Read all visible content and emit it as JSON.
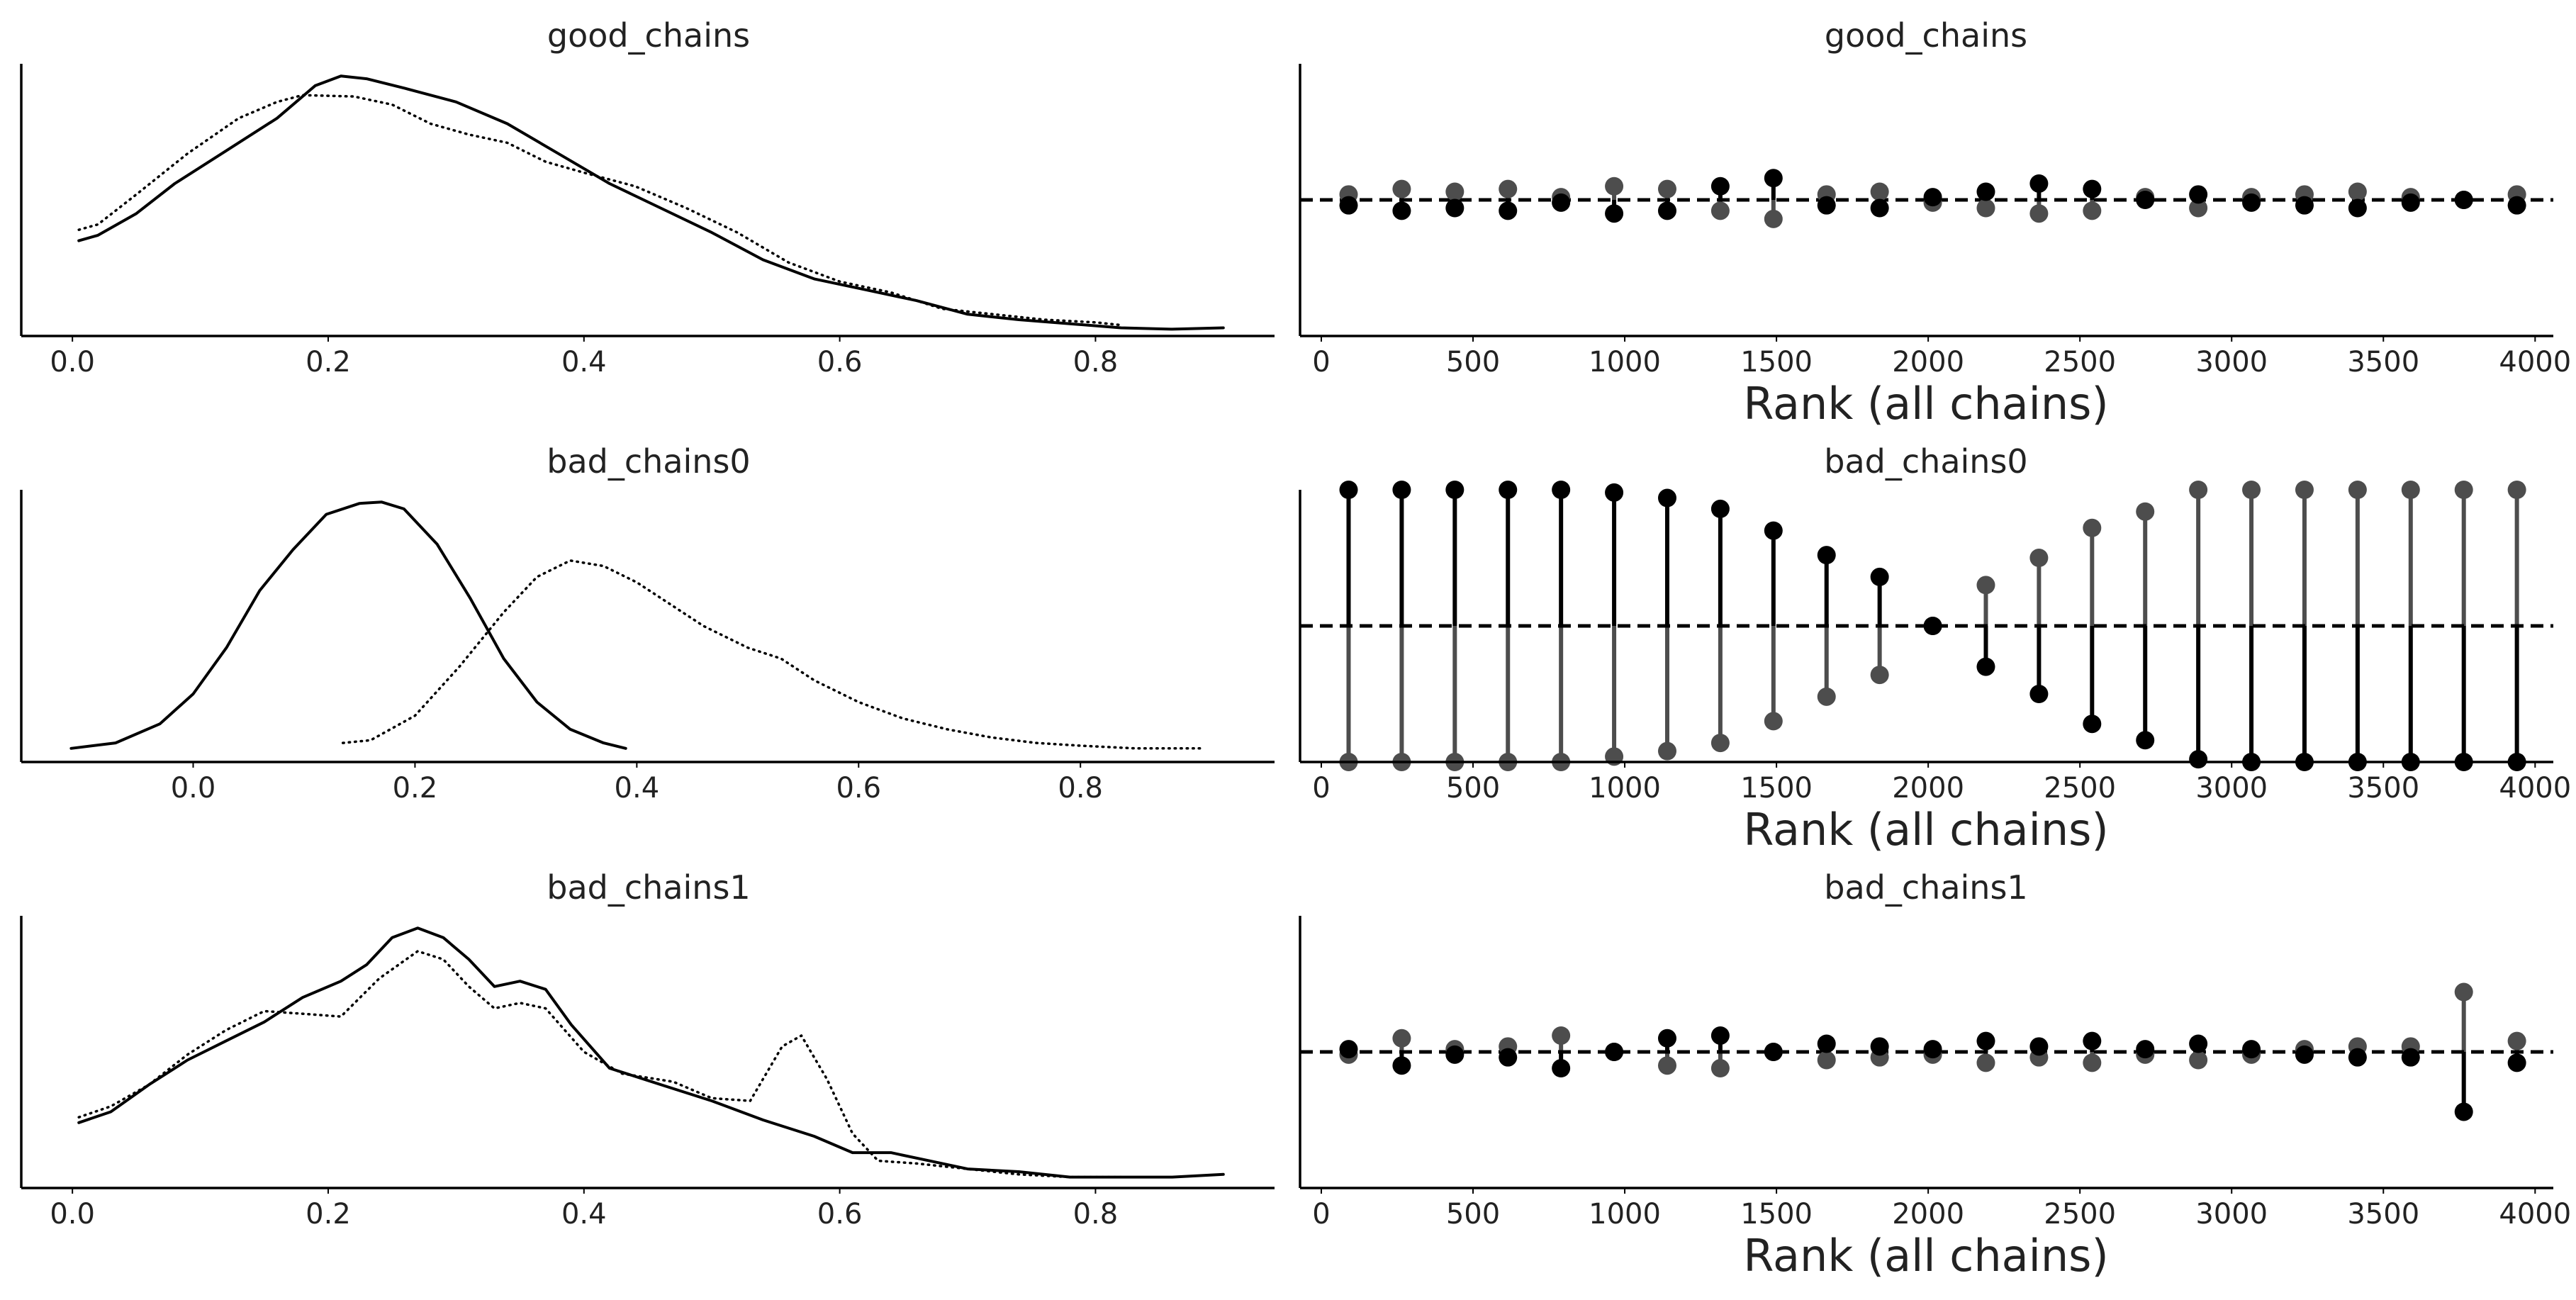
{
  "chart_data": [
    {
      "type": "line",
      "title": "good_chains",
      "xlabel": "",
      "xlim": [
        -0.04,
        0.94
      ],
      "ylim": [
        0,
        1
      ],
      "x_ticks": [
        0.0,
        0.2,
        0.4,
        0.6,
        0.8
      ],
      "x_tick_labels": [
        "0.0",
        "0.2",
        "0.4",
        "0.6",
        "0.8"
      ],
      "series": [
        {
          "style": "solid",
          "points": [
            [
              0.005,
              0.35
            ],
            [
              0.02,
              0.37
            ],
            [
              0.05,
              0.45
            ],
            [
              0.08,
              0.56
            ],
            [
              0.12,
              0.68
            ],
            [
              0.16,
              0.8
            ],
            [
              0.19,
              0.92
            ],
            [
              0.21,
              0.955
            ],
            [
              0.23,
              0.945
            ],
            [
              0.26,
              0.91
            ],
            [
              0.3,
              0.86
            ],
            [
              0.34,
              0.78
            ],
            [
              0.38,
              0.67
            ],
            [
              0.42,
              0.56
            ],
            [
              0.46,
              0.47
            ],
            [
              0.5,
              0.38
            ],
            [
              0.54,
              0.28
            ],
            [
              0.58,
              0.21
            ],
            [
              0.62,
              0.17
            ],
            [
              0.66,
              0.13
            ],
            [
              0.7,
              0.08
            ],
            [
              0.74,
              0.06
            ],
            [
              0.78,
              0.045
            ],
            [
              0.82,
              0.03
            ],
            [
              0.86,
              0.025
            ],
            [
              0.9,
              0.03
            ]
          ]
        },
        {
          "style": "dotted",
          "points": [
            [
              0.005,
              0.39
            ],
            [
              0.02,
              0.41
            ],
            [
              0.05,
              0.52
            ],
            [
              0.09,
              0.67
            ],
            [
              0.13,
              0.8
            ],
            [
              0.16,
              0.86
            ],
            [
              0.18,
              0.885
            ],
            [
              0.22,
              0.88
            ],
            [
              0.25,
              0.85
            ],
            [
              0.28,
              0.78
            ],
            [
              0.31,
              0.74
            ],
            [
              0.34,
              0.71
            ],
            [
              0.37,
              0.64
            ],
            [
              0.4,
              0.6
            ],
            [
              0.44,
              0.55
            ],
            [
              0.48,
              0.47
            ],
            [
              0.52,
              0.38
            ],
            [
              0.56,
              0.27
            ],
            [
              0.6,
              0.2
            ],
            [
              0.64,
              0.16
            ],
            [
              0.68,
              0.1
            ],
            [
              0.72,
              0.08
            ],
            [
              0.76,
              0.06
            ],
            [
              0.8,
              0.05
            ],
            [
              0.82,
              0.04
            ]
          ]
        }
      ]
    },
    {
      "type": "scatter",
      "title": "good_chains",
      "xlabel": "Rank (all chains)",
      "xlim": [
        -70,
        4060
      ],
      "ylim": [
        0,
        1
      ],
      "reference_line": 0.5,
      "x_ticks": [
        0,
        500,
        1000,
        1500,
        2000,
        2500,
        3000,
        3500,
        4000
      ],
      "x_tick_labels": [
        "0",
        "500",
        "1000",
        "1500",
        "2000",
        "2500",
        "3000",
        "3500",
        "4000"
      ],
      "x": [
        90,
        265,
        440,
        615,
        790,
        965,
        1140,
        1315,
        1490,
        1665,
        1840,
        2015,
        2190,
        2365,
        2540,
        2715,
        2890,
        3065,
        3240,
        3415,
        3590,
        3765,
        3940
      ],
      "series": [
        {
          "color": "#000000",
          "values": [
            0.48,
            0.46,
            0.47,
            0.46,
            0.49,
            0.45,
            0.46,
            0.55,
            0.58,
            0.48,
            0.47,
            0.51,
            0.53,
            0.56,
            0.54,
            0.5,
            0.52,
            0.49,
            0.48,
            0.47,
            0.49,
            0.5,
            0.48
          ]
        },
        {
          "color": "#4d4d4d",
          "values": [
            0.52,
            0.54,
            0.53,
            0.54,
            0.51,
            0.55,
            0.54,
            0.46,
            0.43,
            0.52,
            0.53,
            0.49,
            0.47,
            0.45,
            0.46,
            0.51,
            0.47,
            0.51,
            0.52,
            0.53,
            0.51,
            0.5,
            0.52
          ]
        }
      ]
    },
    {
      "type": "line",
      "title": "bad_chains0",
      "xlabel": "",
      "xlim": [
        -0.155,
        0.975
      ],
      "ylim": [
        0,
        1
      ],
      "x_ticks": [
        0.0,
        0.2,
        0.4,
        0.6,
        0.8
      ],
      "x_tick_labels": [
        "0.0",
        "0.2",
        "0.4",
        "0.6",
        "0.8"
      ],
      "series": [
        {
          "style": "solid",
          "points": [
            [
              -0.11,
              0.05
            ],
            [
              -0.07,
              0.07
            ],
            [
              -0.03,
              0.14
            ],
            [
              0.0,
              0.25
            ],
            [
              0.03,
              0.42
            ],
            [
              0.06,
              0.63
            ],
            [
              0.09,
              0.78
            ],
            [
              0.12,
              0.91
            ],
            [
              0.15,
              0.95
            ],
            [
              0.17,
              0.955
            ],
            [
              0.19,
              0.93
            ],
            [
              0.22,
              0.8
            ],
            [
              0.25,
              0.6
            ],
            [
              0.28,
              0.38
            ],
            [
              0.31,
              0.22
            ],
            [
              0.34,
              0.12
            ],
            [
              0.37,
              0.07
            ],
            [
              0.39,
              0.05
            ]
          ]
        },
        {
          "style": "dotted",
          "points": [
            [
              0.135,
              0.07
            ],
            [
              0.16,
              0.08
            ],
            [
              0.2,
              0.17
            ],
            [
              0.24,
              0.35
            ],
            [
              0.28,
              0.55
            ],
            [
              0.31,
              0.68
            ],
            [
              0.34,
              0.74
            ],
            [
              0.37,
              0.72
            ],
            [
              0.4,
              0.66
            ],
            [
              0.43,
              0.58
            ],
            [
              0.46,
              0.5
            ],
            [
              0.5,
              0.42
            ],
            [
              0.53,
              0.38
            ],
            [
              0.56,
              0.3
            ],
            [
              0.6,
              0.22
            ],
            [
              0.64,
              0.16
            ],
            [
              0.68,
              0.12
            ],
            [
              0.72,
              0.09
            ],
            [
              0.76,
              0.07
            ],
            [
              0.8,
              0.06
            ],
            [
              0.85,
              0.05
            ],
            [
              0.91,
              0.05
            ]
          ]
        }
      ]
    },
    {
      "type": "scatter",
      "title": "bad_chains0",
      "xlabel": "Rank (all chains)",
      "xlim": [
        -70,
        4060
      ],
      "ylim": [
        0,
        1
      ],
      "reference_line": 0.5,
      "x_ticks": [
        0,
        500,
        1000,
        1500,
        2000,
        2500,
        3000,
        3500,
        4000
      ],
      "x_tick_labels": [
        "0",
        "500",
        "1000",
        "1500",
        "2000",
        "2500",
        "3000",
        "3500",
        "4000"
      ],
      "x": [
        90,
        265,
        440,
        615,
        790,
        965,
        1140,
        1315,
        1490,
        1665,
        1840,
        2015,
        2190,
        2365,
        2540,
        2715,
        2890,
        3065,
        3240,
        3415,
        3590,
        3765,
        3940
      ],
      "series": [
        {
          "color": "#000000",
          "values": [
            1.0,
            1.0,
            1.0,
            1.0,
            1.0,
            0.99,
            0.97,
            0.93,
            0.85,
            0.76,
            0.68,
            0.5,
            0.35,
            0.25,
            0.14,
            0.08,
            0.01,
            0.0,
            0.0,
            0.0,
            0.0,
            0.0,
            0.0
          ]
        },
        {
          "color": "#4d4d4d",
          "values": [
            0.0,
            0.0,
            0.0,
            0.0,
            0.0,
            0.02,
            0.04,
            0.07,
            0.15,
            0.24,
            0.32,
            0.5,
            0.65,
            0.75,
            0.86,
            0.92,
            1.0,
            1.0,
            1.0,
            1.0,
            1.0,
            1.0,
            1.0
          ]
        }
      ]
    },
    {
      "type": "line",
      "title": "bad_chains1",
      "xlabel": "",
      "xlim": [
        -0.04,
        0.94
      ],
      "ylim": [
        0,
        1
      ],
      "x_ticks": [
        0.0,
        0.2,
        0.4,
        0.6,
        0.8
      ],
      "x_tick_labels": [
        "0.0",
        "0.2",
        "0.4",
        "0.6",
        "0.8"
      ],
      "series": [
        {
          "style": "solid",
          "points": [
            [
              0.005,
              0.24
            ],
            [
              0.03,
              0.28
            ],
            [
              0.06,
              0.38
            ],
            [
              0.09,
              0.47
            ],
            [
              0.12,
              0.54
            ],
            [
              0.15,
              0.61
            ],
            [
              0.18,
              0.7
            ],
            [
              0.21,
              0.76
            ],
            [
              0.23,
              0.82
            ],
            [
              0.25,
              0.92
            ],
            [
              0.27,
              0.955
            ],
            [
              0.29,
              0.92
            ],
            [
              0.31,
              0.84
            ],
            [
              0.33,
              0.74
            ],
            [
              0.35,
              0.76
            ],
            [
              0.37,
              0.73
            ],
            [
              0.39,
              0.6
            ],
            [
              0.42,
              0.44
            ],
            [
              0.46,
              0.38
            ],
            [
              0.5,
              0.32
            ],
            [
              0.54,
              0.25
            ],
            [
              0.58,
              0.19
            ],
            [
              0.61,
              0.13
            ],
            [
              0.64,
              0.13
            ],
            [
              0.67,
              0.1
            ],
            [
              0.7,
              0.07
            ],
            [
              0.74,
              0.06
            ],
            [
              0.78,
              0.04
            ],
            [
              0.82,
              0.04
            ],
            [
              0.86,
              0.04
            ],
            [
              0.9,
              0.05
            ]
          ]
        },
        {
          "style": "dotted",
          "points": [
            [
              0.005,
              0.26
            ],
            [
              0.03,
              0.3
            ],
            [
              0.06,
              0.38
            ],
            [
              0.09,
              0.49
            ],
            [
              0.12,
              0.58
            ],
            [
              0.15,
              0.65
            ],
            [
              0.18,
              0.64
            ],
            [
              0.21,
              0.63
            ],
            [
              0.24,
              0.77
            ],
            [
              0.27,
              0.87
            ],
            [
              0.29,
              0.84
            ],
            [
              0.31,
              0.74
            ],
            [
              0.33,
              0.66
            ],
            [
              0.35,
              0.68
            ],
            [
              0.37,
              0.66
            ],
            [
              0.4,
              0.5
            ],
            [
              0.43,
              0.42
            ],
            [
              0.47,
              0.39
            ],
            [
              0.5,
              0.33
            ],
            [
              0.53,
              0.32
            ],
            [
              0.555,
              0.52
            ],
            [
              0.57,
              0.56
            ],
            [
              0.59,
              0.4
            ],
            [
              0.61,
              0.2
            ],
            [
              0.63,
              0.1
            ],
            [
              0.66,
              0.09
            ],
            [
              0.7,
              0.07
            ],
            [
              0.74,
              0.05
            ],
            [
              0.78,
              0.04
            ],
            [
              0.82,
              0.04
            ]
          ]
        }
      ]
    },
    {
      "type": "scatter",
      "title": "bad_chains1",
      "xlabel": "Rank (all chains)",
      "xlim": [
        -70,
        4060
      ],
      "ylim": [
        0,
        1
      ],
      "reference_line": 0.5,
      "x_ticks": [
        0,
        500,
        1000,
        1500,
        2000,
        2500,
        3000,
        3500,
        4000
      ],
      "x_tick_labels": [
        "0",
        "500",
        "1000",
        "1500",
        "2000",
        "2500",
        "3000",
        "3500",
        "4000"
      ],
      "x": [
        90,
        265,
        440,
        615,
        790,
        965,
        1140,
        1315,
        1490,
        1665,
        1840,
        2015,
        2190,
        2365,
        2540,
        2715,
        2890,
        3065,
        3240,
        3415,
        3590,
        3765,
        3940
      ],
      "series": [
        {
          "color": "#000000",
          "values": [
            0.51,
            0.45,
            0.49,
            0.48,
            0.44,
            0.5,
            0.55,
            0.56,
            0.5,
            0.53,
            0.52,
            0.51,
            0.54,
            0.52,
            0.54,
            0.51,
            0.53,
            0.51,
            0.49,
            0.48,
            0.48,
            0.28,
            0.46
          ]
        },
        {
          "color": "#4d4d4d",
          "values": [
            0.49,
            0.55,
            0.51,
            0.52,
            0.56,
            0.5,
            0.45,
            0.44,
            0.5,
            0.47,
            0.48,
            0.49,
            0.46,
            0.48,
            0.46,
            0.49,
            0.47,
            0.49,
            0.51,
            0.52,
            0.52,
            0.72,
            0.54
          ]
        }
      ]
    }
  ]
}
